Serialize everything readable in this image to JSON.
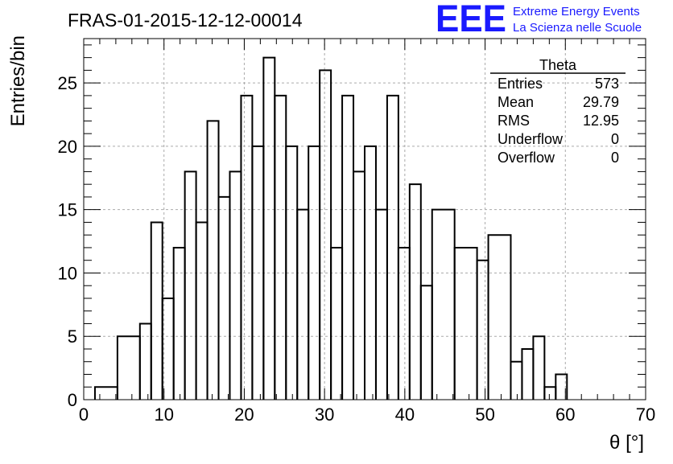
{
  "chart_data": {
    "type": "histogram",
    "title": "FRAS-01-2015-12-12-00014",
    "xlabel": "θ [°]",
    "ylabel": "Entries/bin",
    "xlim": [
      0,
      70
    ],
    "ylim": [
      0,
      28.5
    ],
    "x_major_ticks": [
      0,
      10,
      20,
      30,
      40,
      50,
      60,
      70
    ],
    "y_major_ticks": [
      0,
      5,
      10,
      15,
      20,
      25
    ],
    "grid": true,
    "line_color": "#000000",
    "bins": [
      {
        "x0": 1.4,
        "x1": 4.2,
        "count": 1
      },
      {
        "x0": 4.2,
        "x1": 7.0,
        "count": 5
      },
      {
        "x0": 7.0,
        "x1": 8.4,
        "count": 6
      },
      {
        "x0": 8.4,
        "x1": 9.8,
        "count": 14
      },
      {
        "x0": 9.8,
        "x1": 11.2,
        "count": 8
      },
      {
        "x0": 11.2,
        "x1": 12.6,
        "count": 12
      },
      {
        "x0": 12.6,
        "x1": 14.0,
        "count": 18
      },
      {
        "x0": 14.0,
        "x1": 15.4,
        "count": 14
      },
      {
        "x0": 15.4,
        "x1": 16.8,
        "count": 22
      },
      {
        "x0": 16.8,
        "x1": 18.2,
        "count": 16
      },
      {
        "x0": 18.2,
        "x1": 19.6,
        "count": 18
      },
      {
        "x0": 19.6,
        "x1": 21.0,
        "count": 24
      },
      {
        "x0": 21.0,
        "x1": 22.4,
        "count": 20
      },
      {
        "x0": 22.4,
        "x1": 23.8,
        "count": 27
      },
      {
        "x0": 23.8,
        "x1": 25.2,
        "count": 24
      },
      {
        "x0": 25.2,
        "x1": 26.6,
        "count": 20
      },
      {
        "x0": 26.6,
        "x1": 28.0,
        "count": 15
      },
      {
        "x0": 28.0,
        "x1": 29.4,
        "count": 20
      },
      {
        "x0": 29.4,
        "x1": 30.8,
        "count": 26
      },
      {
        "x0": 30.8,
        "x1": 32.2,
        "count": 12
      },
      {
        "x0": 32.2,
        "x1": 33.6,
        "count": 24
      },
      {
        "x0": 33.6,
        "x1": 35.0,
        "count": 18
      },
      {
        "x0": 35.0,
        "x1": 36.4,
        "count": 20
      },
      {
        "x0": 36.4,
        "x1": 37.8,
        "count": 15
      },
      {
        "x0": 37.8,
        "x1": 39.2,
        "count": 24
      },
      {
        "x0": 39.2,
        "x1": 40.6,
        "count": 12
      },
      {
        "x0": 40.6,
        "x1": 42.0,
        "count": 17
      },
      {
        "x0": 42.0,
        "x1": 43.4,
        "count": 9
      },
      {
        "x0": 43.4,
        "x1": 46.2,
        "count": 15
      },
      {
        "x0": 46.2,
        "x1": 49.0,
        "count": 12
      },
      {
        "x0": 49.0,
        "x1": 50.4,
        "count": 11
      },
      {
        "x0": 50.4,
        "x1": 53.2,
        "count": 13
      },
      {
        "x0": 53.2,
        "x1": 54.6,
        "count": 3
      },
      {
        "x0": 54.6,
        "x1": 56.0,
        "count": 4
      },
      {
        "x0": 56.0,
        "x1": 57.4,
        "count": 5
      },
      {
        "x0": 57.4,
        "x1": 58.8,
        "count": 1
      },
      {
        "x0": 58.8,
        "x1": 60.2,
        "count": 2
      }
    ],
    "stats": {
      "title": "Theta",
      "rows": [
        {
          "label": "Entries",
          "value": "573"
        },
        {
          "label": "Mean",
          "value": "29.79"
        },
        {
          "label": "RMS",
          "value": "12.95"
        },
        {
          "label": "Underflow",
          "value": "0"
        },
        {
          "label": "Overflow",
          "value": "0"
        }
      ]
    }
  },
  "logo": {
    "text": "EEE",
    "line1": "Extreme Energy Events",
    "line2": "La Scienza nelle Scuole",
    "color": "#1a1aff"
  }
}
